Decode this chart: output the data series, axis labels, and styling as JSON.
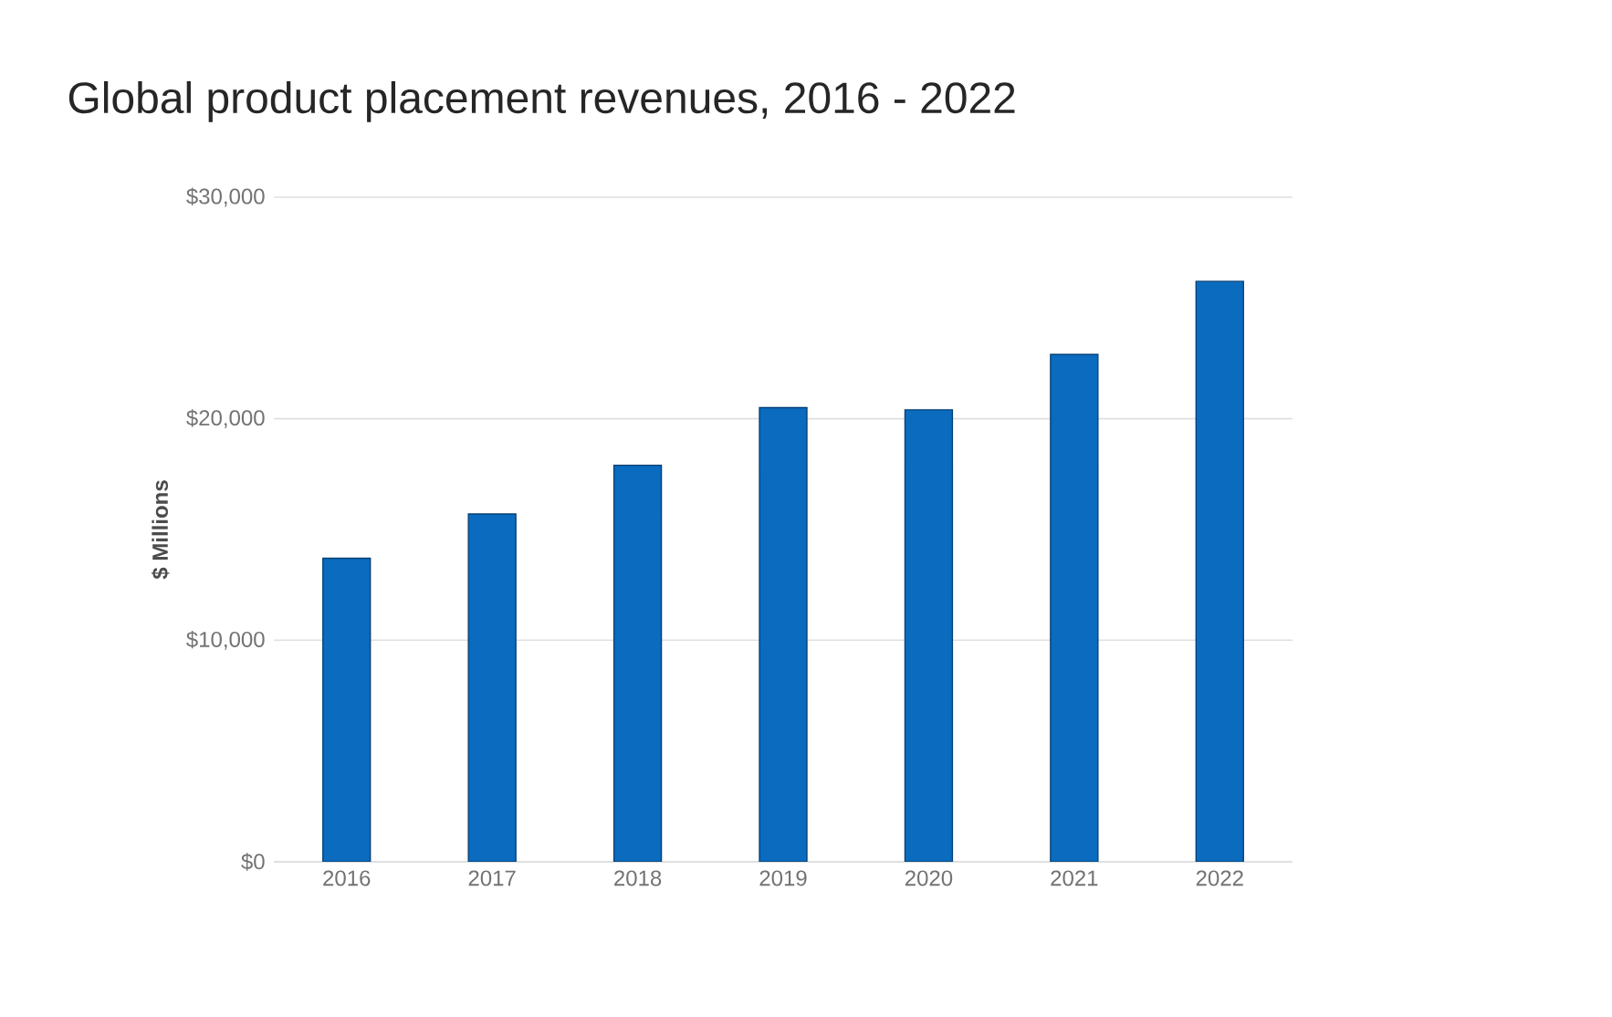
{
  "chart_data": {
    "type": "bar",
    "title": "Global product placement revenues, 2016 - 2022",
    "ylabel": "$ Millions",
    "categories": [
      "2016",
      "2017",
      "2018",
      "2019",
      "2020",
      "2021",
      "2022"
    ],
    "values": [
      13700,
      15700,
      17900,
      20500,
      20400,
      22900,
      26200
    ],
    "color": "#0a6bbf",
    "ylim": [
      0,
      30000
    ],
    "yticks": [
      {
        "value": 0,
        "label": "$0"
      },
      {
        "value": 10000,
        "label": "$10,000"
      },
      {
        "value": 20000,
        "label": "$20,000"
      },
      {
        "value": 30000,
        "label": "$30,000"
      }
    ],
    "grid": "y"
  }
}
